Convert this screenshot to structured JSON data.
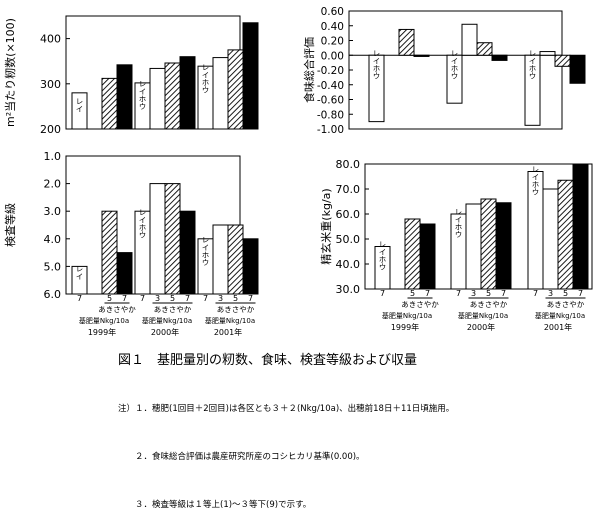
{
  "chart_data": [
    {
      "id": "grains",
      "type": "bar",
      "ylabel": "m²当たり籾数(×100)",
      "ylim": [
        200,
        450
      ],
      "yticks": [
        200,
        300,
        400
      ],
      "series": [
        {
          "variety": "レイホウ",
          "level": "7",
          "values": [
            280,
            302,
            339
          ]
        },
        {
          "variety": "あきさやか",
          "level": "3",
          "values": [
            null,
            334,
            358
          ]
        },
        {
          "variety": "あきさやか",
          "level": "5",
          "values": [
            312,
            346,
            375
          ]
        },
        {
          "variety": "あきさやか",
          "level": "7",
          "values": [
            342,
            360,
            435
          ]
        }
      ]
    },
    {
      "id": "taste",
      "type": "bar",
      "ylabel": "食味総合評価",
      "ylim": [
        -1.0,
        0.6
      ],
      "yticks": [
        0.6,
        0.4,
        0.2,
        0.0,
        -0.2,
        -0.4,
        -0.6,
        -0.8,
        -1.0
      ],
      "series": [
        {
          "variety": "レイホウ",
          "level": "7",
          "values": [
            -0.9,
            -0.65,
            -0.95
          ]
        },
        {
          "variety": "あきさやか",
          "level": "3",
          "values": [
            null,
            0.42,
            0.05
          ]
        },
        {
          "variety": "あきさやか",
          "level": "5",
          "values": [
            0.35,
            0.17,
            -0.15
          ]
        },
        {
          "variety": "あきさやか",
          "level": "7",
          "values": [
            0.0,
            -0.07,
            -0.38
          ]
        }
      ]
    },
    {
      "id": "grade",
      "type": "bar",
      "ylabel": "検査等級",
      "ylim": [
        1.0,
        6.0
      ],
      "inverted": true,
      "yticks": [
        1.0,
        2.0,
        3.0,
        4.0,
        5.0,
        6.0
      ],
      "series": [
        {
          "variety": "レイホウ",
          "level": "7",
          "values": [
            5.0,
            3.0,
            4.0
          ]
        },
        {
          "variety": "あきさやか",
          "level": "3",
          "values": [
            null,
            2.0,
            3.5
          ]
        },
        {
          "variety": "あきさやか",
          "level": "5",
          "values": [
            3.0,
            2.0,
            3.5
          ]
        },
        {
          "variety": "あきさやか",
          "level": "7",
          "values": [
            4.5,
            3.0,
            4.0
          ]
        }
      ]
    },
    {
      "id": "yield",
      "type": "bar",
      "ylabel": "精玄米重(kg/a)",
      "ylim": [
        30,
        80
      ],
      "yticks": [
        30.0,
        40.0,
        50.0,
        60.0,
        70.0,
        80.0
      ],
      "series": [
        {
          "variety": "レイホウ",
          "level": "7",
          "values": [
            47,
            60,
            77
          ]
        },
        {
          "variety": "あきさやか",
          "level": "3",
          "values": [
            null,
            64,
            70
          ]
        },
        {
          "variety": "あきさやか",
          "level": "5",
          "values": [
            58,
            66,
            73.5
          ]
        },
        {
          "variety": "あきさやか",
          "level": "7",
          "values": [
            56,
            64.5,
            80
          ]
        }
      ]
    }
  ],
  "labels": {
    "reihou_vertical": "レイホウ",
    "reihou_short": "レイ",
    "akisayaka": "あきさやか",
    "fert": "基肥量Nkg/10a",
    "years": [
      "1999年",
      "2000年",
      "2001年"
    ],
    "levels_1999": [
      "7",
      "5",
      "7"
    ],
    "levels_other": [
      "7",
      "3",
      "5",
      "7"
    ]
  },
  "caption": "図１　基肥量別の籾数、食味、検査等級および収量",
  "notes": [
    "注）１．穂肥(1回目＋2回目)は各区とも３＋２(Nkg/10a)、出穂前18日＋11日頃施用。",
    "　　２．食味総合評価は農産研究所産のコシヒカリ基準(0.00)。",
    "　　３．検査等級は１等上(1)～３等下(9)で示す。"
  ],
  "colors": {
    "reihou": "#ffffff",
    "aki3": "#ffffff",
    "aki5": "hatch",
    "aki7": "#000000"
  }
}
